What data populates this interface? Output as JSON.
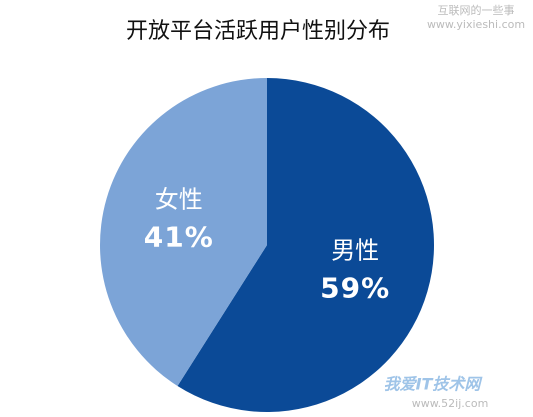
{
  "chart_data": {
    "type": "pie",
    "title": "开放平台活跃用户性别分布",
    "categories": [
      "男性",
      "女性"
    ],
    "values": [
      59,
      41
    ],
    "value_labels": [
      "59%",
      "41%"
    ],
    "colors": [
      "#0b4a97",
      "#7ca4d7"
    ]
  },
  "watermark": {
    "top": [
      "互联网的一些事",
      "www.yixieshi.com"
    ],
    "bottom": [
      "我爱IT技术网",
      "www.52ij.com"
    ]
  }
}
